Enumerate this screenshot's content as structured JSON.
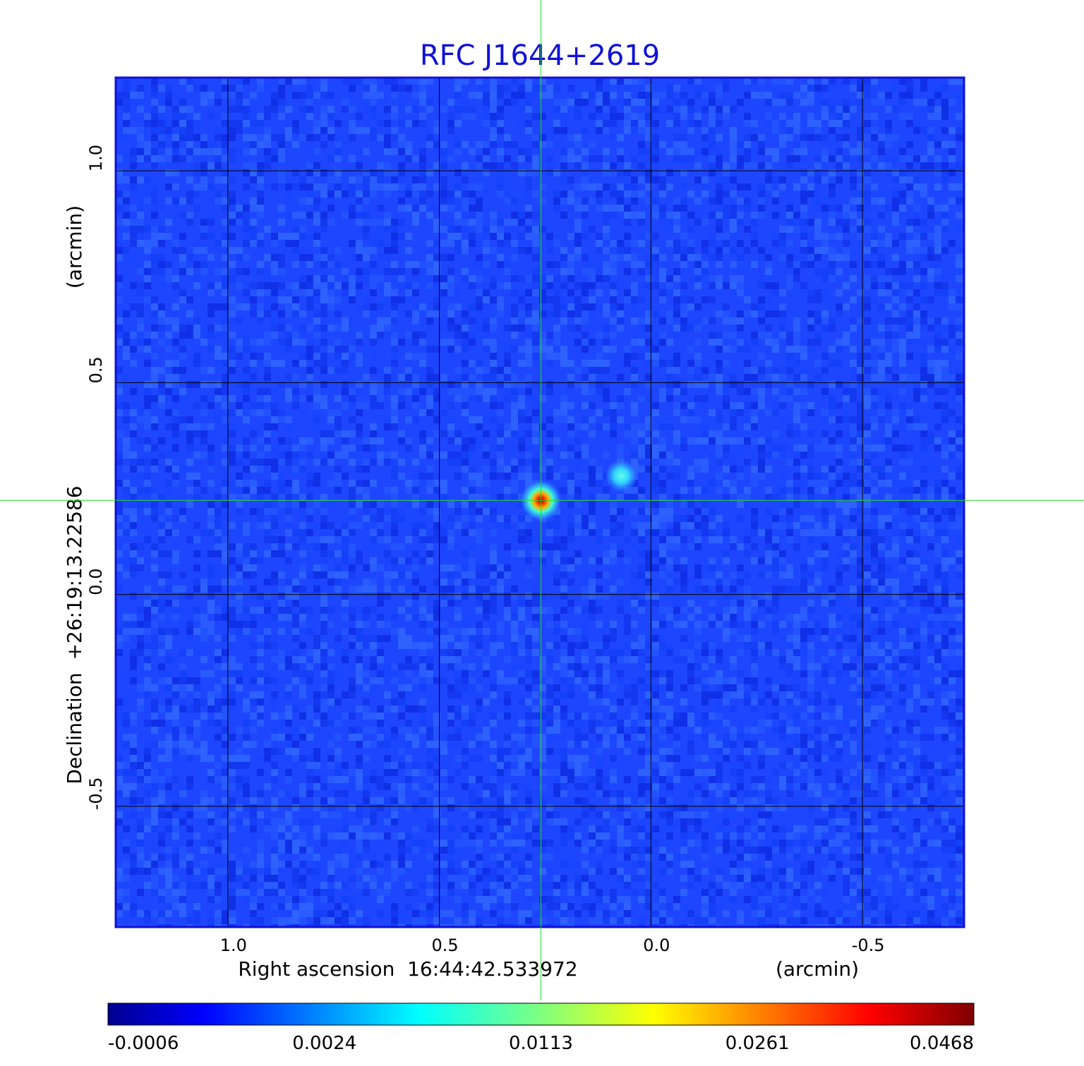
{
  "chart_data": {
    "type": "heatmap",
    "title": "RFC J1644+2619",
    "xlabel": "Right ascension  16:44:42.533972",
    "xunit": "(arcmin)",
    "ylabel": "Declination  +26:19:13.22586",
    "yunit": "(arcmin)",
    "xlim": [
      1.265,
      -0.74
    ],
    "ylim": [
      -0.785,
      1.22
    ],
    "x_ticks": [
      {
        "value": 1.0,
        "label": "1.0"
      },
      {
        "value": 0.5,
        "label": "0.5"
      },
      {
        "value": 0.0,
        "label": "0.0"
      },
      {
        "value": -0.5,
        "label": "-0.5"
      }
    ],
    "y_ticks": [
      {
        "value": 1.0,
        "label": "1.0"
      },
      {
        "value": 0.5,
        "label": "0.5"
      },
      {
        "value": 0.0,
        "label": "0.0"
      },
      {
        "value": -0.5,
        "label": "-0.5"
      }
    ],
    "grid": true,
    "crosshair": {
      "x": 0.26,
      "y": 0.222,
      "color": "#22dd22"
    },
    "sources": [
      {
        "x": 0.26,
        "y": 0.222,
        "peak": 0.0468
      },
      {
        "x": 0.07,
        "y": 0.28,
        "peak": 0.006
      }
    ],
    "colorbar": {
      "colormap": "jet",
      "ticks": [
        {
          "value": -0.0006,
          "label": "-0.0006"
        },
        {
          "value": 0.0024,
          "label": "0.0024"
        },
        {
          "value": 0.0113,
          "label": "0.0113"
        },
        {
          "value": 0.0261,
          "label": "0.0261"
        },
        {
          "value": 0.0468,
          "label": "0.0468"
        }
      ]
    }
  }
}
